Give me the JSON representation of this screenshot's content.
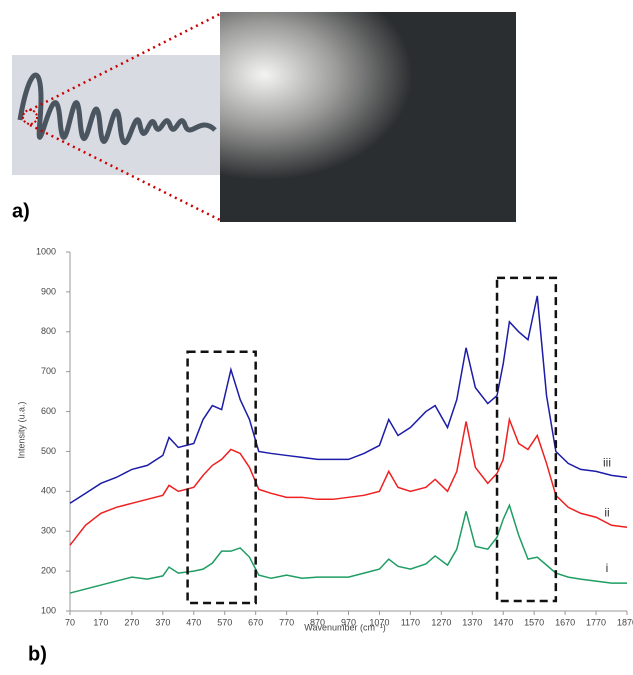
{
  "panel_a_label": "a)",
  "panel_b_label": "b)",
  "chart_data": {
    "type": "line",
    "x_label": "Wavenumber (cm⁻¹)",
    "y_label": "Intensity (u.a.)",
    "x": [
      70,
      120,
      170,
      220,
      270,
      320,
      370,
      390,
      420,
      470,
      500,
      530,
      560,
      590,
      620,
      650,
      680,
      720,
      770,
      820,
      870,
      920,
      970,
      1020,
      1070,
      1100,
      1130,
      1170,
      1220,
      1250,
      1290,
      1320,
      1350,
      1380,
      1420,
      1450,
      1470,
      1490,
      1520,
      1550,
      1580,
      1610,
      1640,
      1680,
      1720,
      1770,
      1820,
      1870
    ],
    "series": [
      {
        "name": "i",
        "color": "#1f9d63",
        "values": [
          145,
          155,
          165,
          175,
          185,
          180,
          188,
          210,
          195,
          200,
          205,
          220,
          250,
          250,
          258,
          235,
          190,
          182,
          190,
          182,
          185,
          185,
          185,
          195,
          205,
          230,
          212,
          205,
          218,
          238,
          215,
          255,
          350,
          262,
          255,
          285,
          330,
          365,
          290,
          230,
          235,
          215,
          195,
          185,
          180,
          175,
          170,
          170
        ]
      },
      {
        "name": "ii",
        "color": "#ee2020",
        "values": [
          265,
          315,
          345,
          360,
          370,
          380,
          390,
          415,
          400,
          410,
          440,
          465,
          480,
          505,
          495,
          460,
          405,
          395,
          385,
          385,
          380,
          380,
          385,
          390,
          400,
          450,
          410,
          400,
          410,
          430,
          400,
          450,
          575,
          460,
          420,
          445,
          480,
          580,
          520,
          505,
          540,
          470,
          390,
          360,
          345,
          335,
          315,
          310
        ]
      },
      {
        "name": "iii",
        "color": "#1c1ca8",
        "values": [
          370,
          395,
          420,
          435,
          455,
          465,
          490,
          535,
          510,
          520,
          580,
          615,
          605,
          705,
          630,
          580,
          500,
          495,
          490,
          485,
          480,
          480,
          480,
          495,
          515,
          580,
          540,
          560,
          600,
          615,
          560,
          630,
          760,
          660,
          620,
          640,
          720,
          825,
          800,
          780,
          890,
          640,
          500,
          470,
          455,
          450,
          440,
          435
        ]
      }
    ],
    "regions": [
      {
        "x": [
          450,
          670
        ],
        "y": [
          120,
          750
        ]
      },
      {
        "x": [
          1450,
          1640
        ],
        "y": [
          125,
          935
        ]
      }
    ],
    "xlim": [
      70,
      1870
    ],
    "ylim": [
      100,
      1000
    ],
    "xticks": [
      70,
      170,
      270,
      370,
      470,
      570,
      670,
      770,
      870,
      970,
      1070,
      1170,
      1270,
      1370,
      1470,
      1570,
      1670,
      1770,
      1870
    ],
    "yticks": [
      100,
      200,
      300,
      400,
      500,
      600,
      700,
      800,
      900,
      1000
    ]
  }
}
